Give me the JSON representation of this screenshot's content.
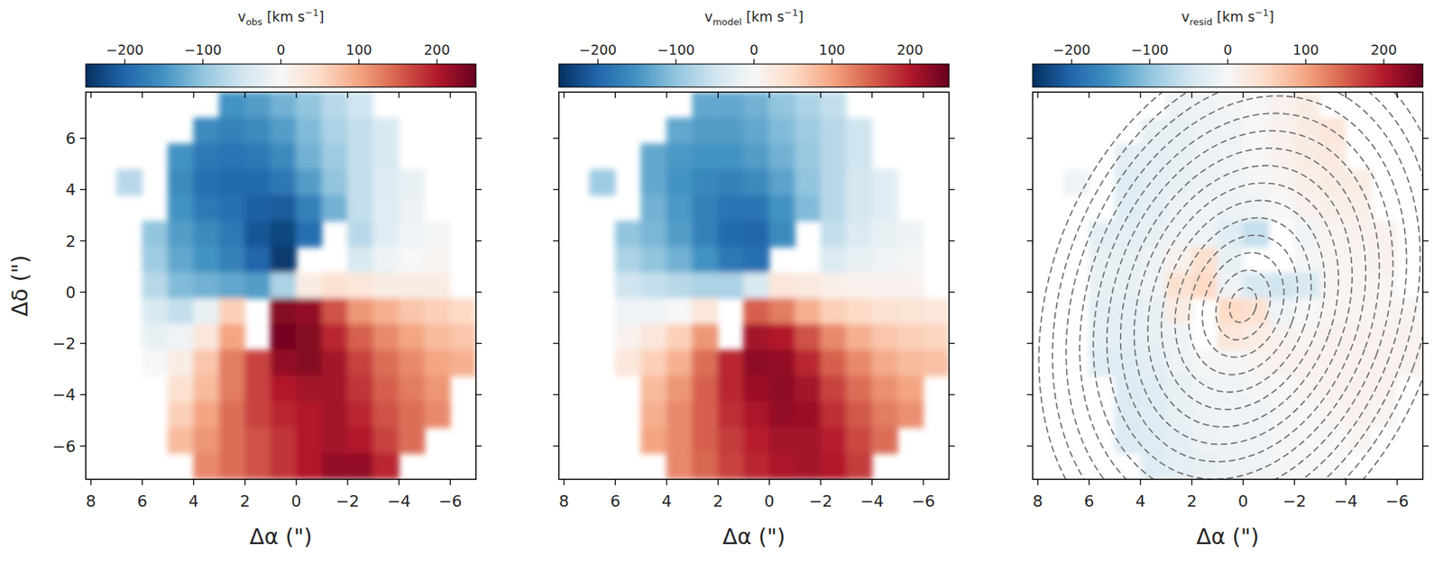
{
  "chart_data": [
    {
      "type": "heatmap",
      "xlabel": "Δα (\")",
      "ylabel": "Δδ (\")",
      "xlim": [
        8.2,
        -7.0
      ],
      "ylim": [
        -7.3,
        7.8
      ],
      "xticks": [
        8,
        6,
        4,
        2,
        0,
        {
          "value": -2,
          "label": "−2"
        },
        {
          "value": -4,
          "label": "−4"
        },
        {
          "value": -6,
          "label": "−6"
        }
      ],
      "yticks": [
        {
          "value": -6,
          "label": "−6"
        },
        {
          "value": -4,
          "label": "−4"
        },
        {
          "value": -2,
          "label": "−2"
        },
        0,
        2,
        4,
        6
      ],
      "cells": {
        "xlim": [
          8,
          -7
        ],
        "ylim": [
          7.8,
          -7.3
        ],
        "values": [
          [
            null,
            null,
            null,
            null,
            null,
            -150,
            -140,
            -120,
            -100,
            -70,
            -50,
            null,
            null,
            null,
            null
          ],
          [
            null,
            null,
            null,
            null,
            -160,
            -170,
            -160,
            -140,
            -110,
            -80,
            -60,
            -40,
            null,
            null,
            null
          ],
          [
            null,
            null,
            null,
            -150,
            -180,
            -185,
            -180,
            -160,
            -120,
            -90,
            -60,
            -40,
            null,
            null,
            null
          ],
          [
            null,
            -70,
            null,
            -160,
            -190,
            -195,
            -195,
            -180,
            -140,
            -100,
            -60,
            -35,
            -20,
            null,
            null
          ],
          [
            null,
            null,
            null,
            -150,
            -180,
            -190,
            -205,
            -210,
            -170,
            -120,
            -60,
            -30,
            -15,
            null,
            null
          ],
          [
            null,
            null,
            -100,
            -140,
            -160,
            -180,
            -215,
            -230,
            -190,
            null,
            -70,
            -30,
            -10,
            -5,
            null
          ],
          [
            null,
            null,
            -90,
            -130,
            -150,
            -170,
            -200,
            -240,
            null,
            null,
            -40,
            -15,
            0,
            5,
            null
          ],
          [
            null,
            null,
            -70,
            -110,
            -120,
            -130,
            -140,
            -80,
            20,
            40,
            30,
            20,
            20,
            20,
            null
          ],
          [
            null,
            null,
            -40,
            -60,
            -20,
            60,
            null,
            230,
            220,
            160,
            110,
            90,
            70,
            60,
            50
          ],
          [
            null,
            null,
            -20,
            -10,
            30,
            100,
            null,
            240,
            230,
            190,
            150,
            120,
            100,
            80,
            70
          ],
          [
            null,
            null,
            0,
            20,
            70,
            130,
            170,
            220,
            230,
            210,
            170,
            140,
            120,
            100,
            90
          ],
          [
            null,
            null,
            null,
            40,
            80,
            130,
            170,
            200,
            210,
            210,
            180,
            150,
            130,
            110,
            null
          ],
          [
            null,
            null,
            null,
            60,
            100,
            140,
            170,
            190,
            200,
            210,
            190,
            160,
            140,
            120,
            null
          ],
          [
            null,
            null,
            null,
            80,
            110,
            140,
            160,
            180,
            200,
            210,
            200,
            170,
            140,
            null,
            null
          ],
          [
            null,
            null,
            null,
            null,
            120,
            140,
            160,
            180,
            200,
            220,
            220,
            190,
            null,
            null,
            null
          ]
        ]
      },
      "colorbar": {
        "label": [
          "v",
          "obs",
          " [km s",
          "−1",
          "]"
        ],
        "range": [
          -250,
          250
        ],
        "ticks": [
          {
            "value": -200,
            "label": "−200"
          },
          {
            "value": -100,
            "label": "−100"
          },
          0,
          100,
          200
        ]
      }
    },
    {
      "type": "heatmap",
      "xlabel": "Δα (\")",
      "tick_labels": "x",
      "xlim": [
        8.2,
        -7.0
      ],
      "ylim": [
        -7.3,
        7.8
      ],
      "xticks": [
        8,
        6,
        4,
        2,
        0,
        {
          "value": -2,
          "label": "−2"
        },
        {
          "value": -4,
          "label": "−4"
        },
        {
          "value": -6,
          "label": "−6"
        }
      ],
      "yticks": [
        {
          "value": -6,
          "label": "−6"
        },
        {
          "value": -4,
          "label": "−4"
        },
        {
          "value": -2,
          "label": "−2"
        },
        0,
        2,
        4,
        6
      ],
      "cells": {
        "xlim": [
          8,
          -7
        ],
        "ylim": [
          7.8,
          -7.3
        ],
        "values": [
          [
            null,
            null,
            null,
            null,
            null,
            -130,
            -130,
            -120,
            -100,
            -80,
            -60,
            null,
            null,
            null,
            null
          ],
          [
            null,
            null,
            null,
            null,
            -130,
            -140,
            -140,
            -130,
            -110,
            -90,
            -70,
            -50,
            null,
            null,
            null
          ],
          [
            null,
            null,
            null,
            -130,
            -145,
            -150,
            -150,
            -140,
            -120,
            -95,
            -70,
            -50,
            null,
            null,
            null
          ],
          [
            null,
            -90,
            null,
            -130,
            -150,
            -165,
            -170,
            -160,
            -135,
            -100,
            -70,
            -45,
            -30,
            null,
            null
          ],
          [
            null,
            null,
            null,
            -120,
            -145,
            -170,
            -185,
            -185,
            -150,
            -110,
            -70,
            -45,
            -30,
            null,
            null
          ],
          [
            null,
            null,
            -100,
            -115,
            -140,
            -170,
            -195,
            -200,
            -160,
            null,
            -60,
            -35,
            -20,
            -15,
            null
          ],
          [
            null,
            null,
            -80,
            -100,
            -120,
            -150,
            -180,
            -190,
            null,
            null,
            -35,
            -20,
            -10,
            -5,
            null
          ],
          [
            null,
            null,
            -50,
            -60,
            -70,
            -80,
            -80,
            -40,
            30,
            25,
            15,
            10,
            10,
            10,
            null
          ],
          [
            null,
            null,
            -10,
            -10,
            0,
            30,
            null,
            150,
            130,
            90,
            60,
            50,
            40,
            35,
            30
          ],
          [
            null,
            null,
            10,
            30,
            60,
            110,
            null,
            210,
            200,
            160,
            120,
            90,
            70,
            60,
            55
          ],
          [
            null,
            null,
            30,
            60,
            90,
            140,
            190,
            225,
            220,
            190,
            150,
            120,
            95,
            80,
            75
          ],
          [
            null,
            null,
            null,
            80,
            110,
            150,
            190,
            215,
            225,
            210,
            170,
            140,
            115,
            100,
            null
          ],
          [
            null,
            null,
            null,
            90,
            120,
            150,
            185,
            205,
            220,
            215,
            185,
            155,
            130,
            115,
            null
          ],
          [
            null,
            null,
            null,
            100,
            120,
            150,
            175,
            195,
            210,
            210,
            195,
            165,
            140,
            null,
            null
          ],
          [
            null,
            null,
            null,
            null,
            120,
            145,
            170,
            190,
            205,
            210,
            200,
            175,
            null,
            null,
            null
          ]
        ]
      },
      "colorbar": {
        "label": [
          "v",
          "model",
          " [km s",
          "−1",
          "]"
        ],
        "range": [
          -250,
          250
        ],
        "ticks": [
          {
            "value": -200,
            "label": "−200"
          },
          {
            "value": -100,
            "label": "−100"
          },
          0,
          100,
          200
        ]
      }
    },
    {
      "type": "heatmap",
      "xlabel": "Δα (\")",
      "tick_labels": "x",
      "xlim": [
        8.2,
        -7.0
      ],
      "ylim": [
        -7.3,
        7.8
      ],
      "xticks": [
        8,
        6,
        4,
        2,
        0,
        {
          "value": -2,
          "label": "−2"
        },
        {
          "value": -4,
          "label": "−4"
        },
        {
          "value": -6,
          "label": "−6"
        }
      ],
      "yticks": [
        {
          "value": -6,
          "label": "−6"
        },
        {
          "value": -4,
          "label": "−4"
        },
        {
          "value": -2,
          "label": "−2"
        },
        0,
        2,
        4,
        6
      ],
      "cells": {
        "xlim": [
          8,
          -7
        ],
        "ylim": [
          7.8,
          -7.3
        ],
        "values": [
          [
            null,
            null,
            null,
            null,
            null,
            -15,
            -10,
            -5,
            0,
            10,
            20,
            null,
            null,
            null,
            null
          ],
          [
            null,
            null,
            null,
            null,
            -20,
            -20,
            -15,
            -10,
            0,
            10,
            20,
            30,
            null,
            null,
            null
          ],
          [
            null,
            null,
            null,
            -25,
            -25,
            -20,
            -15,
            -10,
            0,
            10,
            20,
            25,
            null,
            null,
            null
          ],
          [
            null,
            -10,
            null,
            -30,
            -25,
            -20,
            -15,
            -10,
            -5,
            5,
            15,
            20,
            20,
            null,
            null
          ],
          [
            null,
            null,
            null,
            -30,
            -25,
            -15,
            -10,
            -15,
            -10,
            0,
            10,
            15,
            15,
            null,
            null
          ],
          [
            null,
            null,
            -25,
            -25,
            -20,
            -10,
            -10,
            -30,
            -60,
            null,
            -10,
            5,
            10,
            10,
            null
          ],
          [
            null,
            null,
            -20,
            -20,
            -15,
            10,
            40,
            -20,
            null,
            null,
            -5,
            5,
            5,
            10,
            null
          ],
          [
            null,
            null,
            -20,
            -20,
            -10,
            40,
            50,
            -10,
            -40,
            -50,
            -40,
            5,
            5,
            5,
            null
          ],
          [
            null,
            null,
            -25,
            -25,
            -20,
            20,
            null,
            50,
            40,
            -10,
            0,
            5,
            5,
            5,
            5
          ],
          [
            null,
            null,
            -25,
            -25,
            -20,
            -10,
            null,
            30,
            20,
            10,
            5,
            10,
            10,
            10,
            10
          ],
          [
            null,
            null,
            -30,
            -30,
            -25,
            -15,
            -5,
            -5,
            5,
            10,
            10,
            10,
            10,
            10,
            10
          ],
          [
            null,
            null,
            null,
            -35,
            -30,
            -20,
            -10,
            -10,
            -5,
            0,
            5,
            10,
            10,
            10,
            null
          ],
          [
            null,
            null,
            null,
            -35,
            -30,
            -20,
            -15,
            -10,
            -10,
            -5,
            0,
            5,
            10,
            5,
            null
          ],
          [
            null,
            null,
            null,
            -35,
            -30,
            -25,
            -15,
            -10,
            -10,
            -5,
            0,
            0,
            5,
            null,
            null
          ],
          [
            null,
            null,
            null,
            null,
            -30,
            -25,
            -20,
            -15,
            -10,
            -5,
            0,
            0,
            null,
            null,
            null
          ]
        ]
      },
      "rings": {
        "center": [
          0,
          -0.5
        ],
        "axis_ratio": 0.72,
        "position_angle": -20,
        "semi_major": [
          0.7,
          1.4,
          2.1,
          2.8,
          3.5,
          4.2,
          4.9,
          5.6,
          6.3,
          7.0,
          7.7,
          8.4,
          9.1,
          9.8,
          10.5
        ]
      },
      "colorbar": {
        "label": [
          "v",
          "resid",
          " [km s",
          "−1",
          "]"
        ],
        "range": [
          -250,
          250
        ],
        "ticks": [
          {
            "value": -200,
            "label": "−200"
          },
          {
            "value": -100,
            "label": "−100"
          },
          0,
          100,
          200
        ]
      }
    }
  ]
}
